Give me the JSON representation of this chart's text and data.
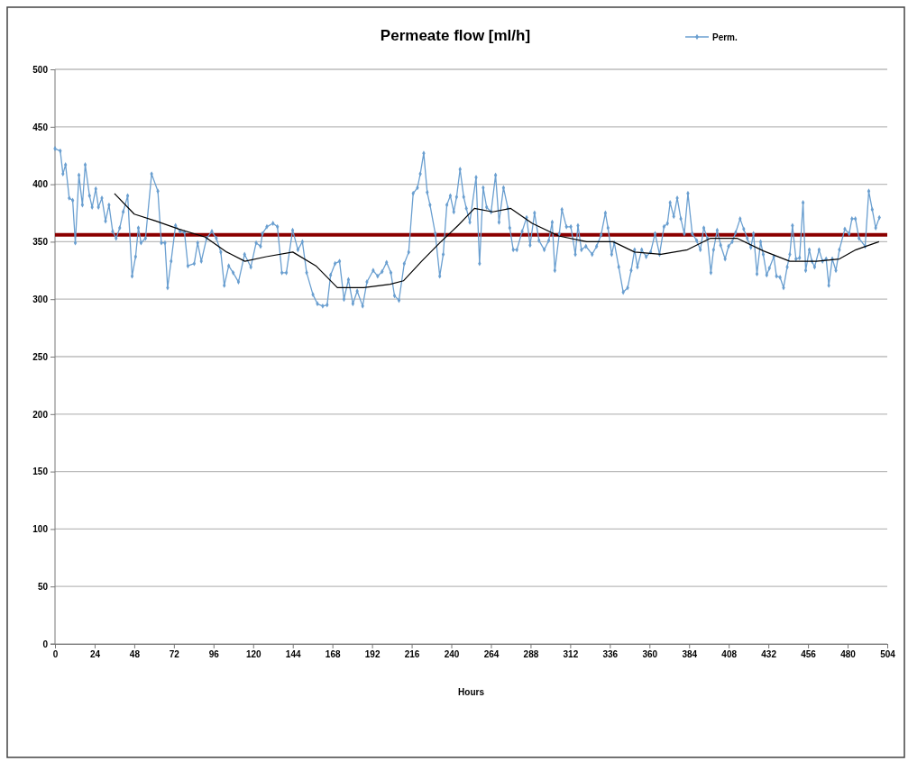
{
  "chart_data": {
    "type": "line",
    "title": "Permeate flow [ml/h]",
    "xlabel": "Hours",
    "xlim": [
      0,
      504
    ],
    "xticks": [
      0,
      24,
      48,
      72,
      96,
      120,
      144,
      168,
      192,
      216,
      240,
      264,
      288,
      312,
      336,
      360,
      384,
      408,
      432,
      456,
      480,
      504
    ],
    "ylim": [
      0,
      500
    ],
    "yticks": [
      0,
      50,
      100,
      150,
      200,
      250,
      300,
      350,
      400,
      450,
      500
    ],
    "grid": "y",
    "legend": "top right",
    "marker": "diamond",
    "line_style": "solid",
    "series": [
      {
        "name": "Perm.",
        "color": "#6a9fd0",
        "x": [
          0,
          3.2,
          4.8,
          6.4,
          8.6,
          10.7,
          12.3,
          14.5,
          16.6,
          18.3,
          20.9,
          22.5,
          24.7,
          26.3,
          28.4,
          30.6,
          32.7,
          34.9,
          37.0,
          39.2,
          41.3,
          44.0,
          46.7,
          48.8,
          50.5,
          52.1,
          54.8,
          58.5,
          62.3,
          64.4,
          66.6,
          68.2,
          70.3,
          73.0,
          75.7,
          78.4,
          80.5,
          84.3,
          86.4,
          88.6,
          91.8,
          95.0,
          97.7,
          100.4,
          102.5,
          105.2,
          107.9,
          111.1,
          114.8,
          118.6,
          121.8,
          124.5,
          125.6,
          128.3,
          132.0,
          134.7,
          137.4,
          140.1,
          143.9,
          147.1,
          149.8,
          152.4,
          156.2,
          158.9,
          162.1,
          164.8,
          166.9,
          169.6,
          172.3,
          175.0,
          177.7,
          180.4,
          183.0,
          186.3,
          188.9,
          192.7,
          195.4,
          198.1,
          200.8,
          203.4,
          205.6,
          208.3,
          211.5,
          214.2,
          216.9,
          219.5,
          221.2,
          223.3,
          225.4,
          227.1,
          230.3,
          233.0,
          235.1,
          237.3,
          239.4,
          241.5,
          243.2,
          245.3,
          247.5,
          249.1,
          251.2,
          255.0,
          257.1,
          259.3,
          261.4,
          264.1,
          266.8,
          268.9,
          271.6,
          274.3,
          275.4,
          277.5,
          279.7,
          282.9,
          285.6,
          287.7,
          290.4,
          293.1,
          296.3,
          299.0,
          301.1,
          302.7,
          305.4,
          307.0,
          309.7,
          312.4,
          315.1,
          316.7,
          318.8,
          321.5,
          325.3,
          328.0,
          330.7,
          333.3,
          334.9,
          337.1,
          338.7,
          341.4,
          344.1,
          346.8,
          348.9,
          351.0,
          352.7,
          355.3,
          358.0,
          360.7,
          363.4,
          366.1,
          368.8,
          370.9,
          372.5,
          374.7,
          376.8,
          379.0,
          381.1,
          383.3,
          385.9,
          388.6,
          390.8,
          392.9,
          395.1,
          397.2,
          398.8,
          401.0,
          403.1,
          405.8,
          407.9,
          410.1,
          412.2,
          414.9,
          417.1,
          419.2,
          421.4,
          423.0,
          425.1,
          427.3,
          428.9,
          431.0,
          432.6,
          435.3,
          436.9,
          439.1,
          441.2,
          443.4,
          445.0,
          446.6,
          448.7,
          450.9,
          453.0,
          454.6,
          456.8,
          458.4,
          460.0,
          462.7,
          464.8,
          467.0,
          468.6,
          470.7,
          472.9,
          475.0,
          478.3,
          480.9,
          482.6,
          484.7,
          486.9,
          490.6,
          492.8,
          494.9,
          497.0,
          499.2
        ],
        "values": [
          431,
          429,
          409,
          417,
          388,
          386,
          349,
          408,
          382,
          417,
          390,
          380,
          396,
          380,
          388,
          368,
          382,
          359,
          353,
          362,
          376,
          390,
          320,
          337,
          362,
          349,
          353,
          409,
          394,
          349,
          349,
          310,
          333,
          364,
          359,
          358,
          329,
          331,
          349,
          333,
          353,
          359,
          353,
          341,
          312,
          329,
          323,
          315,
          339,
          328,
          349,
          346,
          357,
          363,
          366,
          363,
          323,
          323,
          360,
          343,
          350,
          323,
          304,
          296,
          294,
          295,
          321,
          331,
          333,
          300,
          317,
          296,
          307,
          294,
          315,
          325,
          320,
          324,
          332,
          323,
          303,
          299,
          331,
          341,
          392,
          397,
          409,
          427,
          393,
          382,
          357,
          320,
          339,
          382,
          390,
          376,
          389,
          413,
          389,
          379,
          367,
          406,
          331,
          397,
          380,
          376,
          408,
          367,
          397,
          379,
          362,
          343,
          343,
          359,
          371,
          347,
          375,
          351,
          343,
          351,
          367,
          325,
          357,
          378,
          363,
          363,
          339,
          364,
          343,
          346,
          339,
          346,
          356,
          375,
          362,
          339,
          349,
          328,
          306,
          310,
          325,
          343,
          328,
          343,
          337,
          341,
          357,
          339,
          363,
          366,
          384,
          372,
          388,
          370,
          357,
          392,
          357,
          351,
          343,
          362,
          353,
          323,
          343,
          360,
          347,
          335,
          346,
          350,
          358,
          370,
          361,
          353,
          345,
          357,
          322,
          350,
          339,
          321,
          327,
          337,
          320,
          319,
          310,
          328,
          339,
          364,
          335,
          336,
          384,
          325,
          343,
          333,
          328,
          343,
          333,
          335,
          312,
          335,
          325,
          343,
          361,
          357,
          370,
          370,
          353,
          346,
          394,
          378,
          362,
          371
        ]
      },
      {
        "color": "#000000",
        "marker": "none",
        "x": [
          36,
          48,
          61,
          75,
          91,
          104,
          115,
          128,
          144,
          158,
          171,
          187,
          203,
          211,
          222,
          233,
          244,
          254,
          265,
          276,
          289,
          305,
          322,
          338,
          351,
          367,
          383,
          397,
          413,
          429,
          445,
          461,
          475,
          485,
          499
        ],
        "values": [
          392,
          374,
          368,
          361,
          354,
          341,
          333,
          337,
          341,
          329,
          310,
          310,
          313,
          316,
          333,
          349,
          364,
          379,
          376,
          379,
          366,
          355,
          350,
          350,
          341,
          339,
          343,
          353,
          353,
          342,
          333,
          333,
          335,
          343,
          350
        ]
      }
    ],
    "ref_lines": [
      {
        "axis": "y",
        "value": 356,
        "color": "#8b0000",
        "line_style": "solid"
      }
    ]
  }
}
